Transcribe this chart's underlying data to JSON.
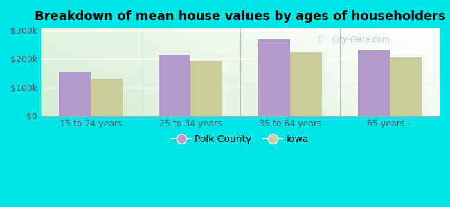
{
  "title": "Breakdown of mean house values by ages of householders",
  "categories": [
    "15 to 24 years",
    "25 to 34 years",
    "35 to 64 years",
    "65 years+"
  ],
  "polk_values": [
    155000,
    215000,
    268000,
    230000
  ],
  "iowa_values": [
    130000,
    193000,
    222000,
    205000
  ],
  "polk_color": "#b399cc",
  "iowa_color": "#c8cc99",
  "outer_bg": "#00e5e5",
  "ylim": [
    0,
    310000
  ],
  "yticks": [
    0,
    100000,
    200000,
    300000
  ],
  "ytick_labels": [
    "$0",
    "$100k",
    "$200k",
    "$300k"
  ],
  "bar_width": 0.32,
  "legend_polk": "Polk County",
  "legend_iowa": "Iowa",
  "title_fontsize": 13,
  "tick_fontsize": 9,
  "legend_fontsize": 10
}
